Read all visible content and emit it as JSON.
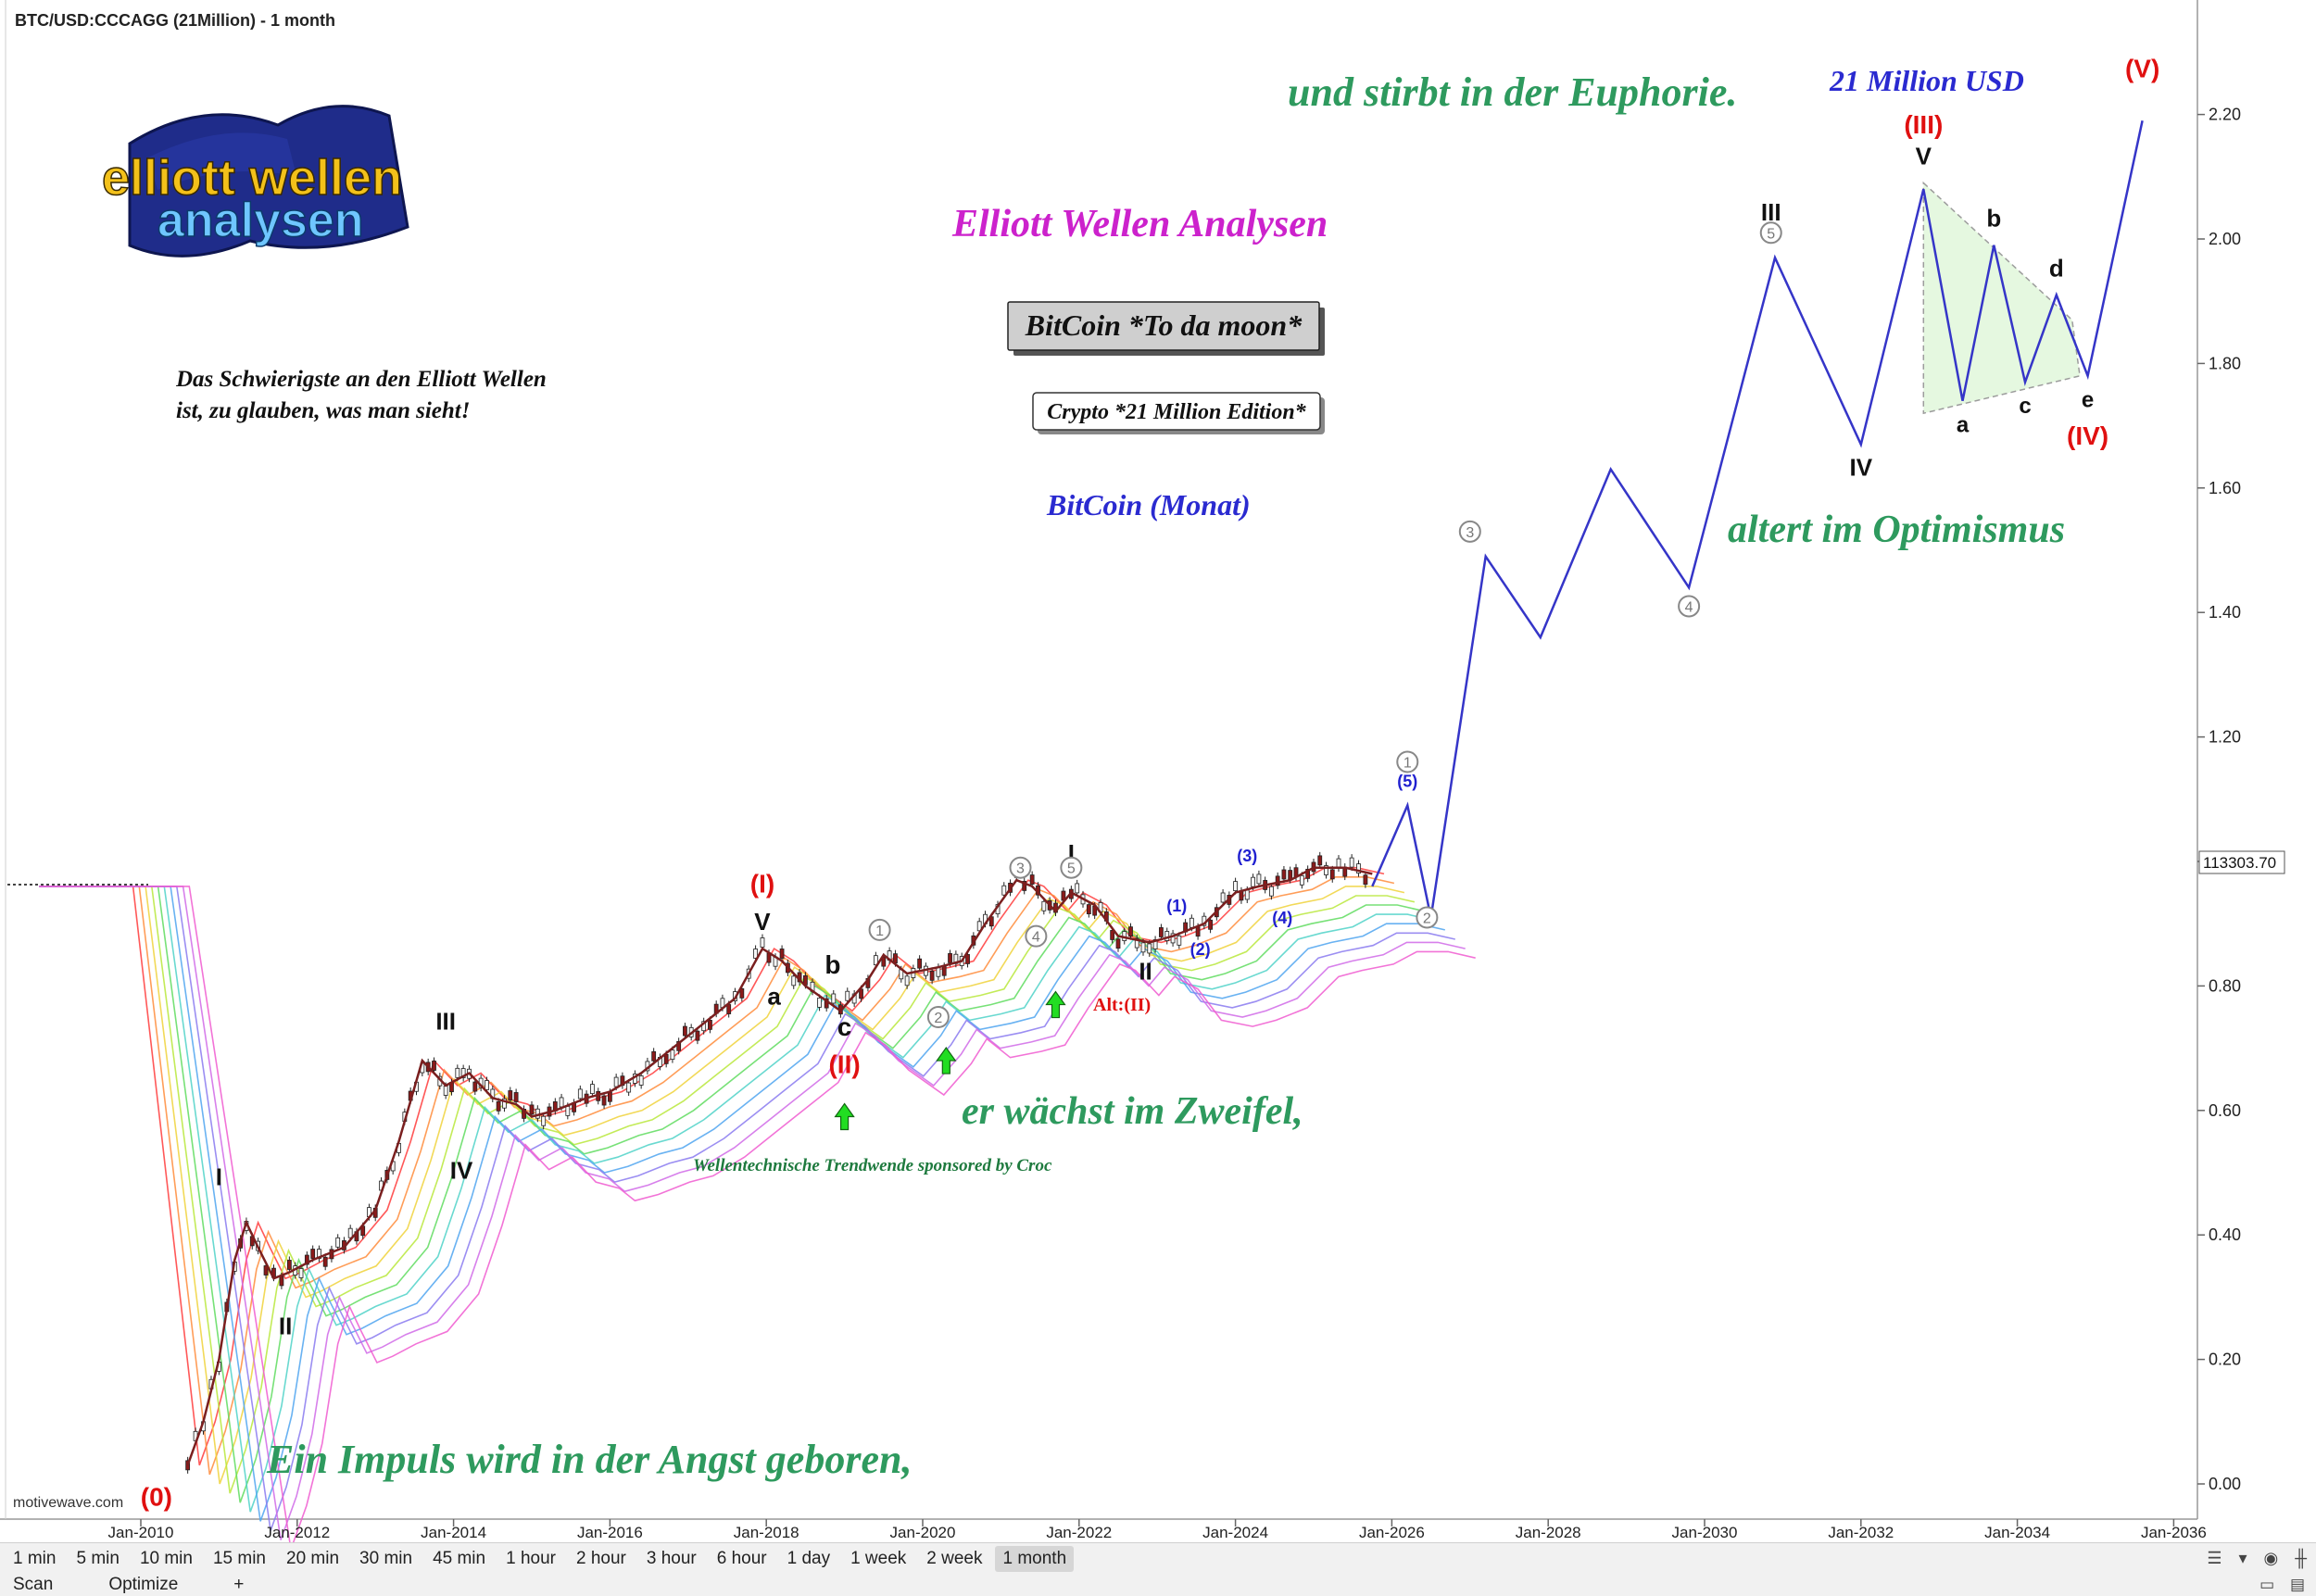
{
  "window": {
    "title": "BTC/USD:CCCAGG (21Million) - 1 month",
    "watermark": "motivewave.com"
  },
  "logo": {
    "line1": "elliott wellen",
    "line2": "analysen"
  },
  "texts": {
    "quote": "Das Schwierigste an den Elliott Wellen ist, zu glauben, was man sieht!",
    "heading": "Elliott Wellen Analysen",
    "button1": "BitCoin *To da moon*",
    "button2": "Crypto *21 Million Edition*",
    "subtitle": "BitCoin (Monat)",
    "phrase_birth": "Ein Impuls wird in der Angst geboren,",
    "phrase_doubt": "er wächst im Zweifel,",
    "phrase_optimism": "altert im Optimismus",
    "phrase_euphoria": "und stirbt in der Euphorie.",
    "target": "21 Million USD",
    "sponsor": "Wellentechnische Trendwende sponsored by Croc",
    "alt": "Alt:(II)"
  },
  "price_tag": "113303.70",
  "colors": {
    "green_text": "#2e9a5e",
    "magenta": "#cc22cc",
    "blue": "#2a2ad0",
    "red": "#e01010",
    "projection": "#3535c8"
  },
  "chart_data": {
    "type": "line",
    "title": "BTC/USD:CCCAGG (21Million) - 1 month",
    "x_ticks": [
      "Jan-2010",
      "Jan-2012",
      "Jan-2014",
      "Jan-2016",
      "Jan-2018",
      "Jan-2020",
      "Jan-2022",
      "Jan-2024",
      "Jan-2026",
      "Jan-2028",
      "Jan-2030",
      "Jan-2032",
      "Jan-2034",
      "Jan-2036"
    ],
    "y_ticks": [
      "0.00",
      "0.20",
      "0.40",
      "0.60",
      "0.80",
      "1.00",
      "1.20",
      "1.40",
      "1.60",
      "1.80",
      "2.00",
      "2.20"
    ],
    "ylim": [
      0,
      2.35
    ],
    "grid": false,
    "series": [
      {
        "kind": "price",
        "x": [
          2010.6,
          2010.8,
          2011.0,
          2011.2,
          2011.35,
          2011.5,
          2011.7,
          2011.9,
          2012.2,
          2012.6,
          2013.0,
          2013.3,
          2013.6,
          2013.9,
          2014.2,
          2014.5,
          2014.8,
          2015.0,
          2015.3,
          2015.7,
          2016.0,
          2016.4,
          2016.8,
          2017.2,
          2017.6,
          2017.95,
          2018.2,
          2018.5,
          2018.95,
          2019.3,
          2019.5,
          2019.8,
          2020.2,
          2020.5,
          2020.8,
          2021.2,
          2021.4,
          2021.7,
          2021.9,
          2022.2,
          2022.5,
          2022.9,
          2023.2,
          2023.6,
          2024.0,
          2024.3,
          2024.7,
          2025.0,
          2025.4,
          2025.75
        ],
        "y": [
          0.03,
          0.1,
          0.2,
          0.36,
          0.42,
          0.38,
          0.33,
          0.34,
          0.36,
          0.38,
          0.44,
          0.55,
          0.68,
          0.64,
          0.66,
          0.62,
          0.61,
          0.59,
          0.6,
          0.62,
          0.63,
          0.66,
          0.7,
          0.74,
          0.78,
          0.86,
          0.84,
          0.8,
          0.76,
          0.81,
          0.85,
          0.82,
          0.83,
          0.84,
          0.9,
          0.97,
          0.96,
          0.92,
          0.95,
          0.93,
          0.88,
          0.87,
          0.88,
          0.9,
          0.95,
          0.96,
          0.97,
          0.99,
          0.99,
          0.98
        ]
      },
      {
        "kind": "projection",
        "x": [
          2025.75,
          2026.2,
          2026.5,
          2027.2,
          2027.9,
          2028.8,
          2029.8,
          2030.9,
          2032.0,
          2032.8,
          2033.3,
          2033.7,
          2034.1,
          2034.5,
          2034.9,
          2035.6
        ],
        "y": [
          0.96,
          1.09,
          0.91,
          1.49,
          1.36,
          1.63,
          1.44,
          1.97,
          1.67,
          2.08,
          1.74,
          1.99,
          1.77,
          1.91,
          1.78,
          2.19
        ]
      }
    ],
    "wave_labels": [
      {
        "text": "(0)",
        "x": 2010.2,
        "y": -0.035,
        "color": "red",
        "size": 28
      },
      {
        "text": "I",
        "x": 2011.0,
        "y": 0.48,
        "color": "black",
        "size": 26
      },
      {
        "text": "II",
        "x": 2011.85,
        "y": 0.24,
        "color": "black",
        "size": 26
      },
      {
        "text": "III",
        "x": 2013.9,
        "y": 0.73,
        "color": "black",
        "size": 26
      },
      {
        "text": "IV",
        "x": 2014.1,
        "y": 0.49,
        "color": "black",
        "size": 26
      },
      {
        "text": "V",
        "x": 2017.95,
        "y": 0.89,
        "color": "black",
        "size": 26
      },
      {
        "text": "(I)",
        "x": 2017.95,
        "y": 0.95,
        "color": "red",
        "size": 28
      },
      {
        "text": "a",
        "x": 2018.1,
        "y": 0.77,
        "color": "black",
        "size": 26
      },
      {
        "text": "b",
        "x": 2018.85,
        "y": 0.82,
        "color": "black",
        "size": 28
      },
      {
        "text": "c",
        "x": 2019.0,
        "y": 0.72,
        "color": "black",
        "size": 28
      },
      {
        "text": "(II)",
        "x": 2019.0,
        "y": 0.66,
        "color": "red",
        "size": 28
      },
      {
        "text": "I",
        "x": 2021.9,
        "y": 1.0,
        "color": "black",
        "size": 26
      },
      {
        "text": "II",
        "x": 2022.85,
        "y": 0.81,
        "color": "black",
        "size": 26
      },
      {
        "text": "III",
        "x": 2030.85,
        "y": 2.03,
        "color": "black",
        "size": 26
      },
      {
        "text": "IV",
        "x": 2032.0,
        "y": 1.62,
        "color": "black",
        "size": 26
      },
      {
        "text": "V",
        "x": 2032.8,
        "y": 2.12,
        "color": "black",
        "size": 26
      },
      {
        "text": "(III)",
        "x": 2032.8,
        "y": 2.17,
        "color": "red",
        "size": 28
      },
      {
        "text": "a",
        "x": 2033.3,
        "y": 1.69,
        "color": "black",
        "size": 24
      },
      {
        "text": "b",
        "x": 2033.7,
        "y": 2.02,
        "color": "black",
        "size": 26
      },
      {
        "text": "c",
        "x": 2034.1,
        "y": 1.72,
        "color": "black",
        "size": 24
      },
      {
        "text": "d",
        "x": 2034.5,
        "y": 1.94,
        "color": "black",
        "size": 26
      },
      {
        "text": "e",
        "x": 2034.9,
        "y": 1.73,
        "color": "black",
        "size": 24
      },
      {
        "text": "(IV)",
        "x": 2034.9,
        "y": 1.67,
        "color": "red",
        "size": 28
      },
      {
        "text": "(V)",
        "x": 2035.6,
        "y": 2.26,
        "color": "red",
        "size": 28
      },
      {
        "text": "(1)",
        "x": 2023.25,
        "y": 0.92,
        "color": "blue",
        "size": 18
      },
      {
        "text": "(2)",
        "x": 2023.55,
        "y": 0.85,
        "color": "blue",
        "size": 18
      },
      {
        "text": "(3)",
        "x": 2024.15,
        "y": 1.0,
        "color": "blue",
        "size": 18
      },
      {
        "text": "(4)",
        "x": 2024.6,
        "y": 0.9,
        "color": "blue",
        "size": 18
      },
      {
        "text": "(5)",
        "x": 2026.2,
        "y": 1.12,
        "color": "blue",
        "size": 18
      }
    ],
    "circle_labels": [
      {
        "text": "1",
        "x": 2019.45,
        "y": 0.89
      },
      {
        "text": "2",
        "x": 2020.2,
        "y": 0.75
      },
      {
        "text": "3",
        "x": 2021.25,
        "y": 0.99
      },
      {
        "text": "4",
        "x": 2021.45,
        "y": 0.88
      },
      {
        "text": "5",
        "x": 2021.9,
        "y": 0.99
      },
      {
        "text": "1",
        "x": 2026.2,
        "y": 1.16
      },
      {
        "text": "2",
        "x": 2026.45,
        "y": 0.91
      },
      {
        "text": "3",
        "x": 2027.0,
        "y": 1.53
      },
      {
        "text": "4",
        "x": 2029.8,
        "y": 1.41
      },
      {
        "text": "5",
        "x": 2030.85,
        "y": 2.01
      }
    ],
    "arrows": [
      {
        "x": 2019.0,
        "y": 0.59
      },
      {
        "x": 2020.3,
        "y": 0.68
      },
      {
        "x": 2021.7,
        "y": 0.77
      }
    ]
  },
  "toolbar": {
    "timeframes": [
      "1 min",
      "5 min",
      "10 min",
      "15 min",
      "20 min",
      "30 min",
      "45 min",
      "1 hour",
      "2 hour",
      "3 hour",
      "6 hour",
      "1 day",
      "1 week",
      "2 week",
      "1 month"
    ],
    "active": "1 month"
  },
  "statusbar": {
    "scan": "Scan",
    "optimize": "Optimize",
    "add": "+"
  }
}
